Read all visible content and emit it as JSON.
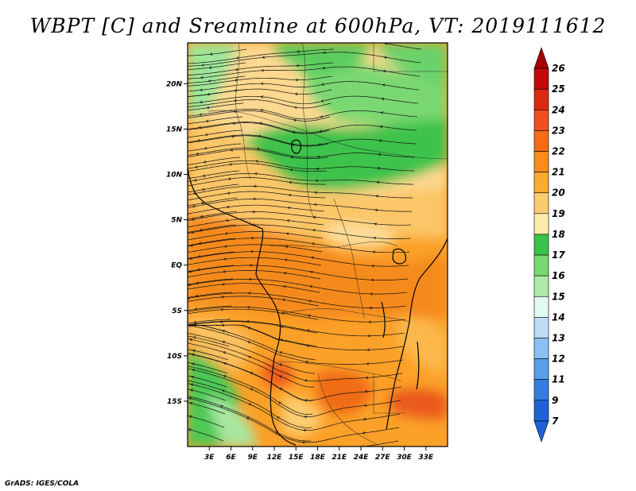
{
  "title": "WBPT [C] and Sreamline at 600hPa, VT: 2019111612",
  "footer": "GrADS: IGES/COLA",
  "map": {
    "lon_range": [
      0,
      36
    ],
    "lat_range": [
      -20,
      24.5
    ],
    "lon_ticks": [
      {
        "value": 3,
        "label": "3E"
      },
      {
        "value": 6,
        "label": "6E"
      },
      {
        "value": 9,
        "label": "9E"
      },
      {
        "value": 12,
        "label": "12E"
      },
      {
        "value": 15,
        "label": "15E"
      },
      {
        "value": 18,
        "label": "18E"
      },
      {
        "value": 21,
        "label": "21E"
      },
      {
        "value": 24,
        "label": "24E"
      },
      {
        "value": 27,
        "label": "27E"
      },
      {
        "value": 30,
        "label": "30E"
      },
      {
        "value": 33,
        "label": "33E"
      }
    ],
    "lat_ticks": [
      {
        "value": 20,
        "label": "20N"
      },
      {
        "value": 15,
        "label": "15N"
      },
      {
        "value": 10,
        "label": "10N"
      },
      {
        "value": 5,
        "label": "5N"
      },
      {
        "value": 0,
        "label": "EQ"
      },
      {
        "value": -5,
        "label": "5S"
      },
      {
        "value": -10,
        "label": "10S"
      },
      {
        "value": -15,
        "label": "15S"
      }
    ]
  },
  "colorbar": {
    "labels": [
      "26",
      "25",
      "24",
      "23",
      "22",
      "21",
      "20",
      "19",
      "18",
      "17",
      "16",
      "15",
      "14",
      "13",
      "12",
      "11",
      "9",
      "7"
    ],
    "colors": [
      "#a50000",
      "#c30a0a",
      "#dc2a12",
      "#ee4f1e",
      "#f56c16",
      "#f98c1a",
      "#fbaa32",
      "#fbcc6e",
      "#fcecaa",
      "#3ac24a",
      "#78d870",
      "#aeeaa8",
      "#e2f8f2",
      "#bcdcf8",
      "#8cc0f2",
      "#5a9ee8",
      "#347de0",
      "#1e62d6",
      "#1e62d6"
    ]
  }
}
